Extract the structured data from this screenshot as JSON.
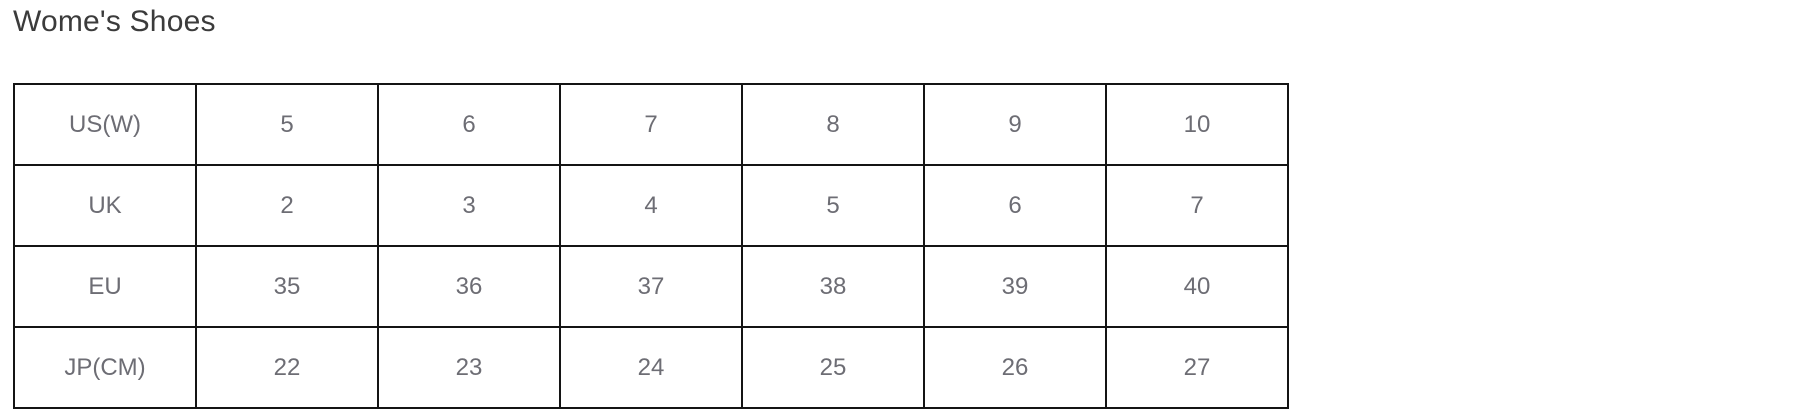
{
  "page": {
    "title": "Wome's Shoes"
  },
  "chart_data": {
    "type": "table",
    "title": "Wome's Shoes",
    "row_headers": [
      "US(W)",
      "UK",
      "EU",
      "JP(CM)"
    ],
    "rows": [
      [
        "5",
        "6",
        "7",
        "8",
        "9",
        "10"
      ],
      [
        "2",
        "3",
        "4",
        "5",
        "6",
        "7"
      ],
      [
        "35",
        "36",
        "37",
        "38",
        "39",
        "40"
      ],
      [
        "22",
        "23",
        "24",
        "25",
        "26",
        "27"
      ]
    ]
  },
  "colors": {
    "background": "#ffffff",
    "table_border": "#141414",
    "cell_text": "#6d6d74",
    "title_text": "#3b3b3b"
  }
}
